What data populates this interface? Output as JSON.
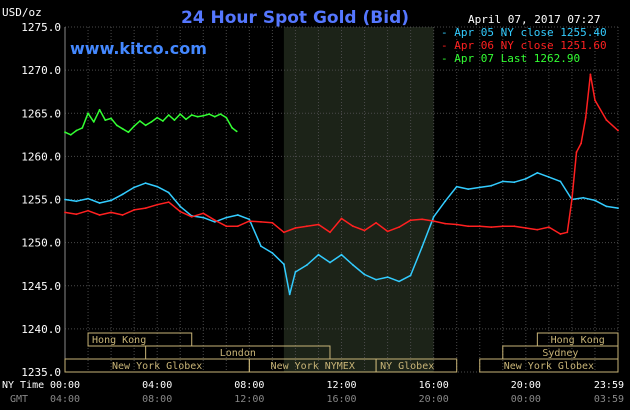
{
  "chart_data": {
    "type": "line",
    "title": "24 Hour Spot Gold (Bid)",
    "y_unit": "USD/oz",
    "watermark": "www.kitco.com",
    "timestamp": "April 07, 2017 07:27",
    "ylim": [
      1235.0,
      1275.0
    ],
    "y_ticks": [
      "1235.0",
      "1240.0",
      "1245.0",
      "1250.0",
      "1255.0",
      "1260.0",
      "1265.0",
      "1270.0",
      "1275.0"
    ],
    "ny_time_label": "NY Time",
    "gmt_label": "GMT",
    "ny_time_ticks": [
      "00:00",
      "04:00",
      "08:00",
      "12:00",
      "16:00",
      "20:00",
      "23:59"
    ],
    "gmt_ticks": [
      "04:00",
      "08:00",
      "12:00",
      "16:00",
      "20:00",
      "00:00",
      "03:59"
    ],
    "shaded_session": {
      "from_hour": 9.5,
      "to_hour": 16.0
    },
    "legend": [
      {
        "text": "Apr 05 NY close 1255.40",
        "color": "#33ccff"
      },
      {
        "text": "Apr 06 NY close 1251.60",
        "color": "#ff2020"
      },
      {
        "text": "Apr 07 Last 1262.90",
        "color": "#33ff33"
      }
    ],
    "series": [
      {
        "name": "Apr 05",
        "color": "#33ccff",
        "x": [
          0,
          0.5,
          1,
          1.5,
          2,
          2.5,
          3,
          3.5,
          4,
          4.5,
          5,
          5.5,
          6,
          6.5,
          7,
          7.5,
          8,
          8.5,
          9,
          9.5,
          9.75,
          10,
          10.5,
          11,
          11.5,
          12,
          12.5,
          13,
          13.5,
          14,
          14.5,
          15,
          15.5,
          16,
          16.5,
          17,
          17.5,
          18,
          18.5,
          19,
          19.5,
          20,
          20.5,
          21,
          21.5,
          22,
          22.5,
          23,
          23.5,
          24
        ],
        "values": [
          1255.0,
          1254.8,
          1255.1,
          1254.6,
          1254.9,
          1255.6,
          1256.4,
          1256.9,
          1256.5,
          1255.8,
          1254.2,
          1253.1,
          1252.9,
          1252.4,
          1252.9,
          1253.2,
          1252.7,
          1249.6,
          1248.8,
          1247.5,
          1244.0,
          1246.6,
          1247.4,
          1248.6,
          1247.7,
          1248.6,
          1247.4,
          1246.3,
          1245.7,
          1246.0,
          1245.5,
          1246.2,
          1249.5,
          1253.0,
          1254.8,
          1256.5,
          1256.2,
          1256.4,
          1256.6,
          1257.1,
          1257.0,
          1257.4,
          1258.1,
          1257.6,
          1257.1,
          1255.0,
          1255.2,
          1254.9,
          1254.2,
          1254.0
        ]
      },
      {
        "name": "Apr 06",
        "color": "#ff2020",
        "x": [
          0,
          0.5,
          1,
          1.5,
          2,
          2.5,
          3,
          3.5,
          4,
          4.5,
          5,
          5.5,
          6,
          6.5,
          7,
          7.5,
          8,
          8.5,
          9,
          9.5,
          10,
          10.5,
          11,
          11.5,
          12,
          12.5,
          13,
          13.5,
          14,
          14.5,
          15,
          15.5,
          16,
          16.5,
          17,
          17.5,
          18,
          18.5,
          19,
          19.5,
          20,
          20.5,
          21,
          21.5,
          21.8,
          22,
          22.2,
          22.4,
          22.6,
          22.8,
          23,
          23.5,
          24
        ],
        "values": [
          1253.5,
          1253.3,
          1253.7,
          1253.2,
          1253.5,
          1253.2,
          1253.8,
          1254.0,
          1254.4,
          1254.7,
          1253.6,
          1253.0,
          1253.4,
          1252.6,
          1251.9,
          1251.9,
          1252.5,
          1252.4,
          1252.3,
          1251.2,
          1251.7,
          1251.9,
          1252.1,
          1251.2,
          1252.8,
          1251.9,
          1251.4,
          1252.3,
          1251.3,
          1251.8,
          1252.6,
          1252.7,
          1252.5,
          1252.2,
          1252.1,
          1251.9,
          1251.9,
          1251.8,
          1251.9,
          1251.9,
          1251.7,
          1251.5,
          1251.8,
          1251.0,
          1251.2,
          1255.0,
          1260.5,
          1261.5,
          1264.5,
          1269.5,
          1266.5,
          1264.2,
          1263.0
        ]
      },
      {
        "name": "Apr 07",
        "color": "#33ff33",
        "x": [
          0,
          0.25,
          0.5,
          0.75,
          1,
          1.25,
          1.5,
          1.75,
          2,
          2.25,
          2.5,
          2.75,
          3,
          3.25,
          3.5,
          3.75,
          4,
          4.25,
          4.5,
          4.75,
          5,
          5.25,
          5.5,
          5.75,
          6,
          6.25,
          6.5,
          6.75,
          7,
          7.25,
          7.45
        ],
        "values": [
          1262.8,
          1262.5,
          1263.0,
          1263.3,
          1265.0,
          1264.0,
          1265.4,
          1264.2,
          1264.4,
          1263.6,
          1263.2,
          1262.8,
          1263.5,
          1264.1,
          1263.6,
          1264.0,
          1264.5,
          1264.1,
          1264.8,
          1264.2,
          1264.9,
          1264.3,
          1264.8,
          1264.6,
          1264.7,
          1264.9,
          1264.6,
          1264.9,
          1264.5,
          1263.3,
          1262.9
        ]
      }
    ],
    "sessions": [
      {
        "name": "Hong Kong",
        "from_hour": 1.0,
        "to_hour": 5.5,
        "row": 0,
        "align": "start"
      },
      {
        "name": "London",
        "from_hour": 3.5,
        "to_hour": 11.5,
        "row": 1,
        "align": "center"
      },
      {
        "name": "New York Globex",
        "from_hour": 0.0,
        "to_hour": 8.0,
        "row": 2,
        "align": "center"
      },
      {
        "name": "New York NYMEX",
        "from_hour": 8.0,
        "to_hour": 13.5,
        "row": 2,
        "align": "center"
      },
      {
        "name": "NY Globex",
        "from_hour": 13.5,
        "to_hour": 17.0,
        "row": 2,
        "align": "start"
      },
      {
        "name": "New York Globex",
        "from_hour": 18.0,
        "to_hour": 24.0,
        "row": 2,
        "align": "center"
      },
      {
        "name": "Hong Kong",
        "from_hour": 20.5,
        "to_hour": 24.0,
        "row": 0,
        "align": "center"
      },
      {
        "name": "Sydney",
        "from_hour": 19.0,
        "to_hour": 24.0,
        "row": 1,
        "align": "center"
      }
    ]
  }
}
